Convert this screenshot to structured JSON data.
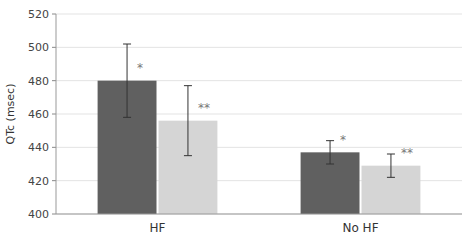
{
  "chart_data": {
    "type": "bar",
    "y_label": "QTc (msec)",
    "categories": [
      "HF",
      "No HF"
    ],
    "series": [
      {
        "color": "#606060",
        "values": [
          480,
          437
        ],
        "errors": [
          22,
          7
        ],
        "annotations": [
          {
            "text": "*",
            "y": 484
          },
          {
            "text": "*",
            "y": 441
          }
        ]
      },
      {
        "color": "#d5d5d5",
        "values": [
          456,
          429
        ],
        "errors": [
          21,
          7
        ],
        "annotations": [
          {
            "text": "**",
            "y": 460
          },
          {
            "text": "**",
            "y": 433
          }
        ]
      }
    ],
    "ylim": [
      400,
      520
    ],
    "yticks": [
      400,
      420,
      440,
      460,
      480,
      500,
      520
    ],
    "grid": true
  }
}
